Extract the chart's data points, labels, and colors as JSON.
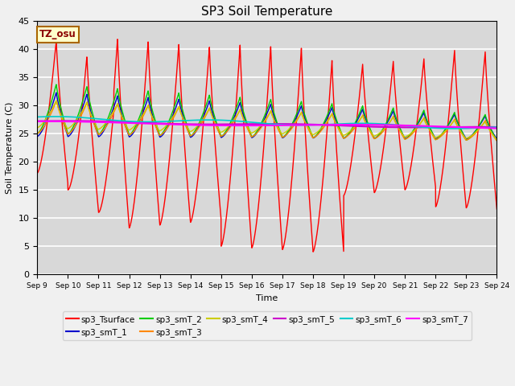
{
  "title": "SP3 Soil Temperature",
  "xlabel": "Time",
  "ylabel": "Soil Temperature (C)",
  "ylim": [
    0,
    45
  ],
  "tz_label": "TZ_osu",
  "plot_bg_color": "#d8d8d8",
  "fig_bg_color": "#f0f0f0",
  "series_colors": {
    "sp3_Tsurface": "#ff0000",
    "sp3_smT_1": "#0000cc",
    "sp3_smT_2": "#00cc00",
    "sp3_smT_3": "#ff8800",
    "sp3_smT_4": "#cccc00",
    "sp3_smT_5": "#cc00cc",
    "sp3_smT_6": "#00cccc",
    "sp3_smT_7": "#ff00ff"
  },
  "x_tick_labels": [
    "Sep 9",
    "Sep 10",
    "Sep 11",
    "Sep 12",
    "Sep 13",
    "Sep 14",
    "Sep 15",
    "Sep 16",
    "Sep 17",
    "Sep 18",
    "Sep 19",
    "Sep 20",
    "Sep 21",
    "Sep 22",
    "Sep 23",
    "Sep 24"
  ]
}
